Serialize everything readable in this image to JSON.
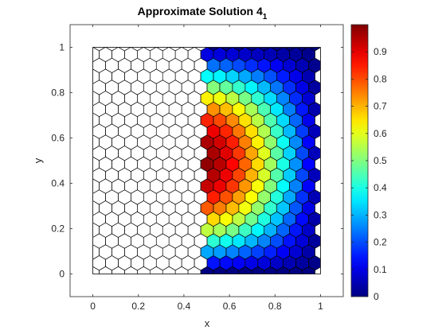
{
  "chart_data": {
    "type": "heatmap",
    "title": "Approximate Solution 4",
    "title_subscript": "1",
    "xlabel": "x",
    "ylabel": "y",
    "xlim": [
      -0.1,
      1.1
    ],
    "ylim": [
      -0.1,
      1.1
    ],
    "xticks": [
      "0",
      "0.2",
      "0.4",
      "0.6",
      "0.8",
      "1"
    ],
    "xtick_values": [
      0,
      0.2,
      0.4,
      0.6,
      0.8,
      1
    ],
    "yticks": [
      "0",
      "0.2",
      "0.4",
      "0.6",
      "0.8",
      "1"
    ],
    "ytick_values": [
      0,
      0.2,
      0.4,
      0.6,
      0.8,
      1
    ],
    "domain": {
      "xmin": 0,
      "xmax": 1,
      "ymin": 0,
      "ymax": 1
    },
    "mesh": "hexagonal polygonal mesh",
    "colored_region_x": [
      0.5,
      1.0
    ],
    "field": {
      "description": "approximate solution values on [0.5,1] x [0,1], rows from y=1 (top) to y=0 (bottom), columns from x=0.5 to x=1.0",
      "x": [
        0.5,
        0.55,
        0.6,
        0.65,
        0.7,
        0.75,
        0.8,
        0.85,
        0.9,
        0.95,
        1.0
      ],
      "y": [
        1.0,
        0.9,
        0.8,
        0.7,
        0.6,
        0.5,
        0.4,
        0.3,
        0.2,
        0.1,
        0.0
      ],
      "values": [
        [
          0.0,
          0.0,
          0.0,
          0.0,
          0.0,
          0.0,
          0.0,
          0.0,
          0.0,
          0.0,
          0.0
        ],
        [
          0.3,
          0.29,
          0.27,
          0.24,
          0.21,
          0.18,
          0.15,
          0.11,
          0.08,
          0.04,
          0.0
        ],
        [
          0.58,
          0.56,
          0.52,
          0.47,
          0.41,
          0.35,
          0.28,
          0.21,
          0.14,
          0.07,
          0.0
        ],
        [
          0.81,
          0.78,
          0.73,
          0.66,
          0.58,
          0.49,
          0.4,
          0.3,
          0.2,
          0.1,
          0.0
        ],
        [
          0.95,
          0.92,
          0.86,
          0.78,
          0.68,
          0.58,
          0.47,
          0.35,
          0.24,
          0.12,
          0.0
        ],
        [
          0.99,
          0.96,
          0.9,
          0.82,
          0.72,
          0.61,
          0.49,
          0.37,
          0.25,
          0.12,
          0.0
        ],
        [
          0.95,
          0.92,
          0.86,
          0.78,
          0.68,
          0.58,
          0.47,
          0.35,
          0.24,
          0.12,
          0.0
        ],
        [
          0.81,
          0.78,
          0.73,
          0.66,
          0.58,
          0.49,
          0.4,
          0.3,
          0.2,
          0.1,
          0.0
        ],
        [
          0.58,
          0.56,
          0.52,
          0.47,
          0.41,
          0.35,
          0.28,
          0.21,
          0.14,
          0.07,
          0.0
        ],
        [
          0.3,
          0.29,
          0.27,
          0.24,
          0.21,
          0.18,
          0.15,
          0.11,
          0.08,
          0.04,
          0.0
        ],
        [
          0.0,
          0.0,
          0.0,
          0.0,
          0.0,
          0.0,
          0.0,
          0.0,
          0.0,
          0.0,
          0.0
        ]
      ]
    },
    "colorbar": {
      "colormap": "jet",
      "range": [
        0,
        1
      ],
      "ticks": [
        "0",
        "0.1",
        "0.2",
        "0.3",
        "0.4",
        "0.5",
        "0.6",
        "0.7",
        "0.8",
        "0.9"
      ],
      "tick_values": [
        0,
        0.1,
        0.2,
        0.3,
        0.4,
        0.5,
        0.6,
        0.7,
        0.8,
        0.9
      ],
      "placement": "right"
    },
    "grid": false,
    "edge_color": "#000000"
  }
}
